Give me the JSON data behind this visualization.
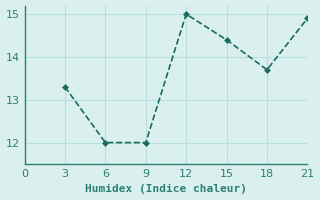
{
  "x": [
    3,
    6,
    9,
    12,
    15,
    18,
    21
  ],
  "y": [
    13.3,
    12.0,
    12.0,
    15.0,
    14.4,
    13.7,
    14.9
  ],
  "line_color": "#1a6b5e",
  "marker": "D",
  "marker_size": 3,
  "xlabel": "Humidex (Indice chaleur)",
  "xlim": [
    0,
    21
  ],
  "ylim": [
    11.5,
    15.2
  ],
  "xticks": [
    0,
    3,
    6,
    9,
    12,
    15,
    18,
    21
  ],
  "yticks": [
    12,
    13,
    14,
    15
  ],
  "background_color": "#d9f0ef",
  "grid_color": "#b8dedd",
  "spine_color": "#2d7f74",
  "xlabel_fontsize": 8,
  "tick_fontsize": 8,
  "line_width": 1.2,
  "linestyle": "--"
}
